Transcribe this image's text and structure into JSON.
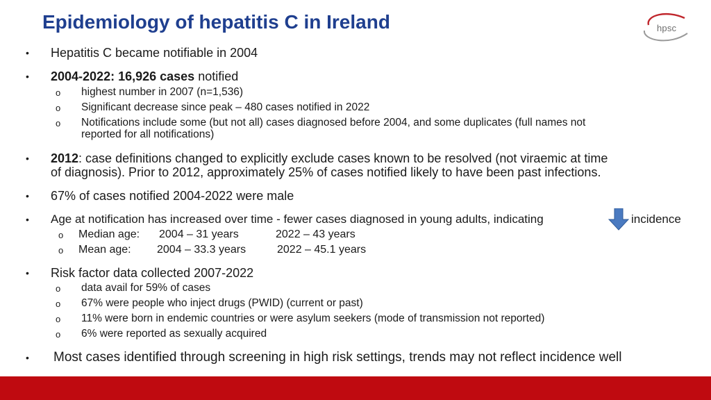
{
  "title": "Epidemiology of hepatitis C in Ireland",
  "logo": {
    "text": "hpsc",
    "colors": {
      "red": "#c0272d",
      "grey": "#9a9a9a"
    }
  },
  "bullet_char": "•",
  "sub_char": "o",
  "bullets": {
    "b1": "Hepatitis C became notifiable in 2004",
    "b2": {
      "bold": "2004-2022:  16,926 cases",
      "rest": " notified"
    },
    "b2_subs": [
      "highest number in 2007 (n=1,536)",
      "Significant decrease since peak – 480 cases notified in 2022",
      "Notifications include some (but not all) cases diagnosed before 2004, and some duplicates (full names not",
      "reported for all notifications)"
    ],
    "b3": {
      "bold": "2012",
      "line1": ": case definitions changed to explicitly exclude cases known to be resolved (not viraemic at time",
      "line2": "of diagnosis). Prior to 2012, approximately 25% of cases notified likely to have been past infections."
    },
    "b4": "67% of cases notified 2004-2022 were male",
    "b5": {
      "before": "Age at notification has increased over time - fewer cases diagnosed in young adults, indicating",
      "after": "incidence"
    },
    "b5_subs": {
      "median_label": "Median age:",
      "median_2004": "2004 – 31 years",
      "median_2022": "2022 – 43 years",
      "mean_label": "Mean age:",
      "mean_2004": "2004 – 33.3 years",
      "mean_2022": "2022 – 45.1 years"
    },
    "b6": "Risk factor data collected 2007-2022",
    "b6_subs": [
      "data avail for 59% of cases",
      "67% were people who inject drugs (PWID) (current or past)",
      "11% were born in endemic countries or were asylum seekers (mode of transmission not reported)",
      "6% were reported as sexually acquired"
    ],
    "b7": "Most cases identified through screening in high risk settings, trends may not reflect incidence well"
  },
  "arrow_icon": "down-arrow-icon",
  "colors": {
    "title": "#1f3f8f",
    "arrow": "#4a7ac0",
    "footer": "#bf0a10"
  }
}
